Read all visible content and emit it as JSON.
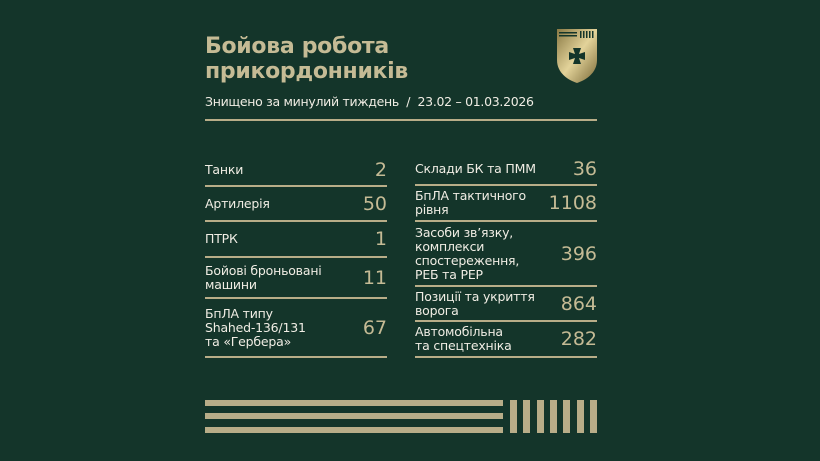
{
  "header": {
    "title": "Бойова робота\nприкордонників",
    "subtitle": "Знищено за минулий тиждень  /  23.02 – 01.03.2026"
  },
  "colors": {
    "background": "#14352a",
    "accent": "#b8ad88"
  },
  "emblem": "border-guard-shield-cross-icon",
  "left": [
    {
      "label": "Танки",
      "value": "2"
    },
    {
      "label": "Артилерія",
      "value": "50"
    },
    {
      "label": "ПТРК",
      "value": "1"
    },
    {
      "label": "Бойові броньовані\nмашини",
      "value": "11"
    },
    {
      "label": "БпЛА типу\nShahed-136/131\nта «Гербера»",
      "value": "67"
    }
  ],
  "right": [
    {
      "label": "Склади БК та ПММ",
      "value": "36"
    },
    {
      "label": "БпЛА тактичного\nрівня",
      "value": "1108"
    },
    {
      "label": "Засоби зв’язку,\nкомплекси\nспостереження,\nРЕБ та РЕР",
      "value": "396"
    },
    {
      "label": "Позиції та укриття\nворога",
      "value": "864"
    },
    {
      "label": "Автомобільна\nта спецтехніка",
      "value": "282"
    }
  ]
}
